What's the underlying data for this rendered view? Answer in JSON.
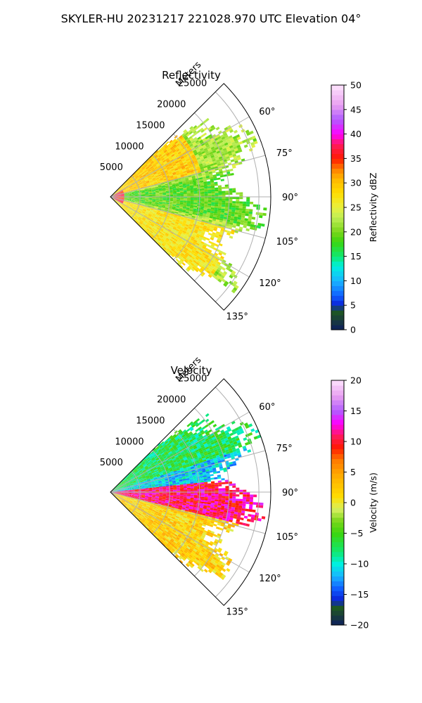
{
  "figure": {
    "title": "SKYLER-HU  20231217  221028.970 UTC Elevation 04°"
  },
  "chart_data": [
    {
      "type": "heatmap",
      "subtype": "radar-ppi-sector",
      "title": "Reflectivity",
      "range_label": "Meters",
      "range_ticks": [
        5000,
        10000,
        15000,
        20000,
        25000
      ],
      "range_max": 27000,
      "azimuth_ticks": [
        "60°",
        "75°",
        "90°",
        "105°",
        "120°",
        "135°"
      ],
      "azimuth_range": [
        45,
        135
      ],
      "grid": true,
      "colorbar": {
        "label": "Reflectivity dBZ",
        "min": 0,
        "max": 50,
        "ticks": [
          "0",
          "5",
          "10",
          "15",
          "20",
          "25",
          "30",
          "35",
          "40",
          "45",
          "50"
        ],
        "stops": [
          {
            "v": 0,
            "color": "#0c1f5e"
          },
          {
            "v": 2,
            "color": "#1a3c3c"
          },
          {
            "v": 4,
            "color": "#1f5c1f"
          },
          {
            "v": 5,
            "color": "#0b1fd6"
          },
          {
            "v": 7,
            "color": "#1060ff"
          },
          {
            "v": 10,
            "color": "#19b5ff"
          },
          {
            "v": 13,
            "color": "#00f0e0"
          },
          {
            "v": 15,
            "color": "#10e870"
          },
          {
            "v": 18,
            "color": "#3bd60f"
          },
          {
            "v": 20,
            "color": "#79d61a"
          },
          {
            "v": 23,
            "color": "#c0ee55"
          },
          {
            "v": 25,
            "color": "#e8f040"
          },
          {
            "v": 28,
            "color": "#ffdd00"
          },
          {
            "v": 31,
            "color": "#ffb400"
          },
          {
            "v": 33,
            "color": "#ff7a00"
          },
          {
            "v": 35,
            "color": "#ff1a00"
          },
          {
            "v": 38,
            "color": "#ff1a60"
          },
          {
            "v": 40,
            "color": "#ff00ff"
          },
          {
            "v": 43,
            "color": "#b15cff"
          },
          {
            "v": 46,
            "color": "#e9a0f0"
          },
          {
            "v": 50,
            "color": "#fde4fd"
          }
        ]
      },
      "field_model": [
        {
          "az": [
            45,
            135
          ],
          "r": [
            0,
            27000
          ],
          "value": 22
        },
        {
          "az": [
            45,
            75
          ],
          "r": [
            0,
            16000
          ],
          "value": 29
        },
        {
          "az": [
            78,
            102
          ],
          "r": [
            0,
            27000
          ],
          "value": 19
        },
        {
          "az": [
            105,
            135
          ],
          "r": [
            0,
            22000
          ],
          "value": 27
        },
        {
          "az": [
            60,
            120
          ],
          "r": [
            0,
            2500
          ],
          "value": 36
        }
      ]
    },
    {
      "type": "heatmap",
      "subtype": "radar-ppi-sector",
      "title": "Velocity",
      "range_label": "Meters",
      "range_ticks": [
        5000,
        10000,
        15000,
        20000,
        25000
      ],
      "range_max": 27000,
      "azimuth_ticks": [
        "60°",
        "75°",
        "90°",
        "105°",
        "120°",
        "135°"
      ],
      "azimuth_range": [
        45,
        135
      ],
      "grid": true,
      "colorbar": {
        "label": "Velocity (m/s)",
        "min": -20,
        "max": 20,
        "ticks": [
          "−20",
          "−15",
          "−10",
          "−5",
          "0",
          "5",
          "10",
          "15",
          "20"
        ],
        "stops": [
          {
            "v": -20,
            "color": "#0c1f5e"
          },
          {
            "v": -18.5,
            "color": "#1a3c3c"
          },
          {
            "v": -17,
            "color": "#1f5c1f"
          },
          {
            "v": -16,
            "color": "#0b1fd6"
          },
          {
            "v": -14,
            "color": "#1060ff"
          },
          {
            "v": -12,
            "color": "#19b5ff"
          },
          {
            "v": -10,
            "color": "#00f0e0"
          },
          {
            "v": -8,
            "color": "#10e870"
          },
          {
            "v": -5,
            "color": "#3bd60f"
          },
          {
            "v": -3,
            "color": "#79d61a"
          },
          {
            "v": -1,
            "color": "#d8f060"
          },
          {
            "v": 1,
            "color": "#ffdd00"
          },
          {
            "v": 4,
            "color": "#ffb400"
          },
          {
            "v": 7,
            "color": "#ff7a00"
          },
          {
            "v": 9,
            "color": "#ff1a00"
          },
          {
            "v": 11,
            "color": "#ff1a60"
          },
          {
            "v": 13,
            "color": "#ff00ff"
          },
          {
            "v": 15,
            "color": "#b15cff"
          },
          {
            "v": 17.5,
            "color": "#e9a0f0"
          },
          {
            "v": 20,
            "color": "#fde4fd"
          }
        ]
      },
      "field_model": [
        {
          "az": [
            45,
            72
          ],
          "r": [
            0,
            27000
          ],
          "value": -7
        },
        {
          "az": [
            72,
            84
          ],
          "r": [
            0,
            27000
          ],
          "value": -11
        },
        {
          "az": [
            84,
            104
          ],
          "r": [
            0,
            27000
          ],
          "value": 11
        },
        {
          "az": [
            104,
            135
          ],
          "r": [
            0,
            24000
          ],
          "value": 2
        }
      ]
    }
  ]
}
